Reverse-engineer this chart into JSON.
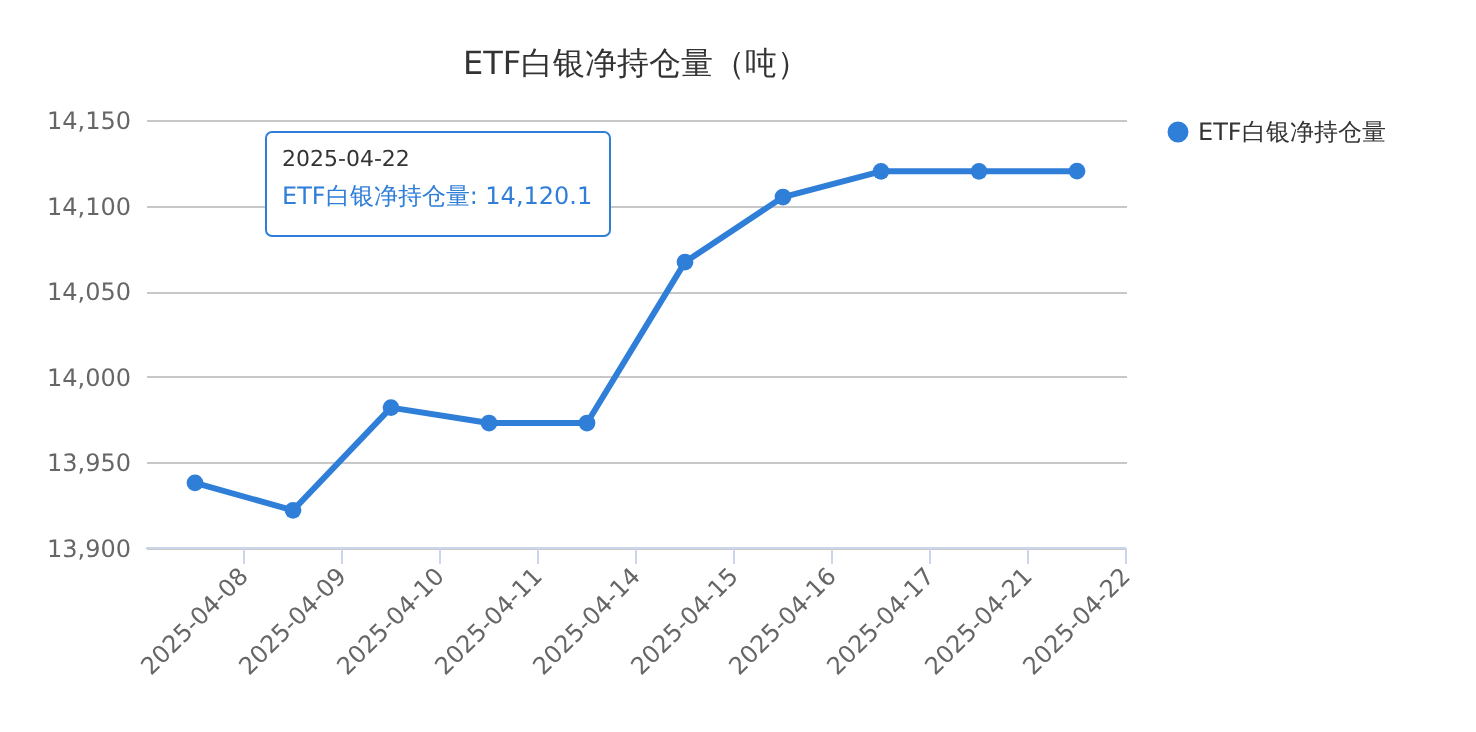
{
  "chart_data": {
    "type": "line",
    "title": "ETF白银净持仓量（吨）",
    "categories": [
      "2025-04-08",
      "2025-04-09",
      "2025-04-10",
      "2025-04-11",
      "2025-04-14",
      "2025-04-15",
      "2025-04-16",
      "2025-04-17",
      "2025-04-21",
      "2025-04-22"
    ],
    "series": [
      {
        "name": "ETF白银净持仓量",
        "color": "#2f7ed8",
        "values": [
          13938,
          13922,
          13982,
          13973,
          13973,
          14067,
          14105,
          14120,
          14120,
          14120.1
        ]
      }
    ],
    "ylim": [
      13900,
      14150
    ],
    "yticks": [
      {
        "value": 13900,
        "label": "13,900"
      },
      {
        "value": 13950,
        "label": "13,950"
      },
      {
        "value": 14000,
        "label": "14,000"
      },
      {
        "value": 14050,
        "label": "14,050"
      },
      {
        "value": 14100,
        "label": "14,100"
      },
      {
        "value": 14150,
        "label": "14,150"
      }
    ],
    "grid": "y",
    "legend": "right",
    "marker": "circle",
    "line_style": "solid",
    "annotations": [
      "2025-04-22",
      "ETF白银净持仓量: 14,120.1"
    ]
  }
}
